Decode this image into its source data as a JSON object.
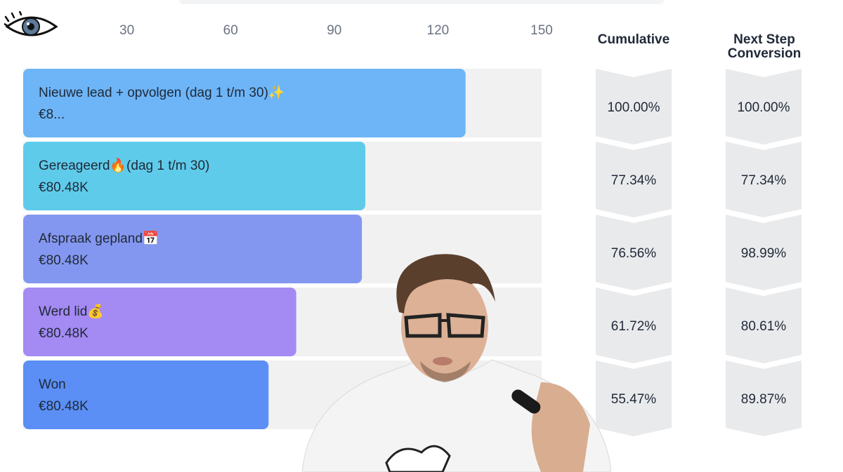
{
  "columns": {
    "cumulative_title": "Cumulative",
    "next_step_title_line1": "Next Step",
    "next_step_title_line2": "Conversion"
  },
  "chart_data": {
    "type": "bar",
    "orientation": "horizontal",
    "x_ticks": [
      30,
      60,
      90,
      120,
      150
    ],
    "xlim": [
      0,
      150
    ],
    "grid": false,
    "categories": [
      "Nieuwe lead + opvolgen (dag 1 t/m 30)✨",
      "Gereageerd🔥(dag 1 t/m 30)",
      "Afspraak gepland📅",
      "Werd lid💰",
      "Won"
    ],
    "values": [
      128,
      99,
      98,
      79,
      71
    ],
    "value_labels": [
      "€8...",
      "€80.48K",
      "€80.48K",
      "€80.48K",
      "€80.48K"
    ],
    "bar_colors": [
      "#6eb5f7",
      "#5fcbea",
      "#8497f0",
      "#a48af3",
      "#5b8ff6"
    ],
    "cumulative": [
      "100.00%",
      "77.34%",
      "76.56%",
      "61.72%",
      "55.47%"
    ],
    "next_step_conversion": [
      "100.00%",
      "77.34%",
      "98.99%",
      "80.61%",
      "89.87%"
    ]
  }
}
